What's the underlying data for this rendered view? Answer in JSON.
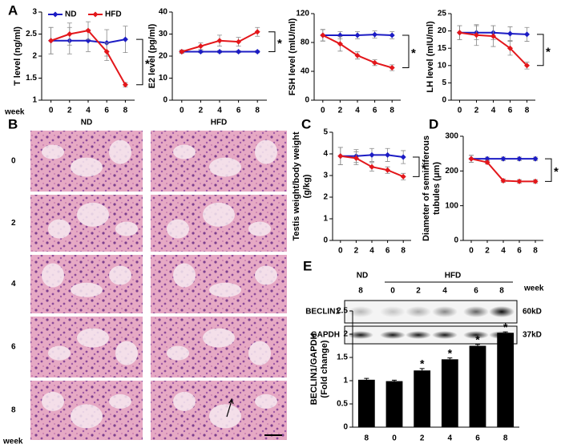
{
  "panel_labels": [
    "A",
    "B",
    "C",
    "D",
    "E"
  ],
  "histology": {
    "columns": [
      "ND",
      "HFD"
    ],
    "rows": [
      "0",
      "2",
      "4",
      "6",
      "8"
    ],
    "row_axis_label": "week"
  },
  "blot": {
    "groups": [
      "ND",
      "HFD"
    ],
    "lane_axis_label": "week",
    "lanes": [
      "8",
      "0",
      "2",
      "4",
      "6",
      "8"
    ],
    "rows": [
      {
        "name": "BECLIN1",
        "size": "60kD"
      },
      {
        "name": "GAPDH",
        "size": "37kD"
      }
    ]
  },
  "chart_data": [
    {
      "type": "line",
      "ylabel": "T level (ng/ml)",
      "xlabel": "week",
      "legend": true,
      "annotation": "*",
      "x": [
        0,
        2,
        4,
        6,
        8
      ],
      "xlim": [
        -1,
        9
      ],
      "xticks": [
        0,
        2,
        4,
        6,
        8
      ],
      "ylim": [
        1,
        3
      ],
      "yticks": [
        1,
        1.5,
        2,
        2.5,
        3
      ],
      "series": [
        {
          "name": "ND",
          "color": "#1c1cc4",
          "values": [
            2.35,
            2.35,
            2.35,
            2.3,
            2.38
          ],
          "errors": [
            0.3,
            0.3,
            0.25,
            0.3,
            0.3
          ]
        },
        {
          "name": "HFD",
          "color": "#e3171b",
          "values": [
            2.35,
            2.5,
            2.58,
            2.1,
            1.35
          ],
          "errors": [
            0.3,
            0.25,
            0.2,
            0.2,
            0.05
          ]
        }
      ]
    },
    {
      "type": "line",
      "ylabel": "E2 level (pg/ml)",
      "annotation": "*",
      "x": [
        0,
        2,
        4,
        6,
        8
      ],
      "xlim": [
        -1,
        9
      ],
      "xticks": [
        0,
        2,
        4,
        6,
        8
      ],
      "ylim": [
        0,
        40
      ],
      "yticks": [
        0,
        10,
        20,
        30,
        40
      ],
      "series": [
        {
          "name": "ND",
          "color": "#1c1cc4",
          "values": [
            22,
            22,
            22,
            22,
            22
          ],
          "errors": [
            0.5,
            0.5,
            0.5,
            0.5,
            0.5
          ]
        },
        {
          "name": "HFD",
          "color": "#e3171b",
          "values": [
            22,
            24.5,
            27,
            26.5,
            31
          ],
          "errors": [
            0.8,
            1.5,
            2.5,
            2,
            2
          ]
        }
      ]
    },
    {
      "type": "line",
      "ylabel": "FSH level (mIU/ml)",
      "annotation": "*",
      "x": [
        0,
        2,
        4,
        6,
        8
      ],
      "xlim": [
        -1,
        9
      ],
      "xticks": [
        0,
        2,
        4,
        6,
        8
      ],
      "ylim": [
        0,
        120
      ],
      "yticks": [
        0,
        40,
        80,
        120
      ],
      "series": [
        {
          "name": "ND",
          "color": "#1c1cc4",
          "values": [
            90,
            90,
            90,
            91,
            90
          ],
          "errors": [
            8,
            5,
            5,
            5,
            5
          ]
        },
        {
          "name": "HFD",
          "color": "#e3171b",
          "values": [
            90,
            78,
            62,
            52,
            45
          ],
          "errors": [
            8,
            10,
            5,
            4,
            4
          ]
        }
      ]
    },
    {
      "type": "line",
      "ylabel": "LH level (mIU/ml)",
      "annotation": "*",
      "x": [
        0,
        2,
        4,
        6,
        8
      ],
      "xlim": [
        -1,
        9
      ],
      "xticks": [
        0,
        2,
        4,
        6,
        8
      ],
      "ylim": [
        0,
        25
      ],
      "yticks": [
        0,
        5,
        10,
        15,
        20,
        25
      ],
      "series": [
        {
          "name": "ND",
          "color": "#1c1cc4",
          "values": [
            19.5,
            19.5,
            19.5,
            19.2,
            19
          ],
          "errors": [
            2,
            2,
            2,
            2,
            2
          ]
        },
        {
          "name": "HFD",
          "color": "#e3171b",
          "values": [
            19.5,
            18.8,
            18.5,
            15,
            10
          ],
          "errors": [
            2,
            3,
            3,
            2,
            1
          ]
        }
      ]
    },
    {
      "type": "line",
      "ylabel": [
        "Testis weight/body weight",
        "(g/kg)"
      ],
      "annotation": "*",
      "x": [
        0,
        2,
        4,
        6,
        8
      ],
      "xlim": [
        -1,
        9
      ],
      "xticks": [
        0,
        2,
        4,
        6,
        8
      ],
      "ylim": [
        0,
        5
      ],
      "yticks": [
        0,
        1,
        2,
        3,
        4,
        5
      ],
      "series": [
        {
          "name": "ND",
          "color": "#1c1cc4",
          "values": [
            3.9,
            3.9,
            3.95,
            3.95,
            3.85
          ],
          "errors": [
            0.4,
            0.3,
            0.3,
            0.3,
            0.3
          ]
        },
        {
          "name": "HFD",
          "color": "#e3171b",
          "values": [
            3.9,
            3.8,
            3.4,
            3.25,
            2.95
          ],
          "errors": [
            0.4,
            0.3,
            0.2,
            0.15,
            0.15
          ]
        }
      ]
    },
    {
      "type": "line",
      "ylabel": [
        "Diameter of seminiferous",
        "tubules (μm)"
      ],
      "annotation": "*",
      "x": [
        0,
        2,
        4,
        6,
        8
      ],
      "xlim": [
        -1,
        9
      ],
      "xticks": [
        0,
        2,
        4,
        6,
        8
      ],
      "ylim": [
        0,
        300
      ],
      "yticks": [
        0,
        100,
        200,
        300
      ],
      "series": [
        {
          "name": "ND",
          "color": "#1c1cc4",
          "values": [
            235,
            235,
            235,
            235,
            235
          ],
          "errors": [
            10,
            5,
            5,
            5,
            5
          ]
        },
        {
          "name": "HFD",
          "color": "#e3171b",
          "values": [
            235,
            225,
            172,
            170,
            170
          ],
          "errors": [
            10,
            5,
            5,
            5,
            5
          ]
        }
      ]
    },
    {
      "type": "bar",
      "ylabel": [
        "BECLIN1/GAPDH",
        "(Fold change)"
      ],
      "color": "#000000",
      "categories": [
        "8",
        "0",
        "2",
        "4",
        "6",
        "8"
      ],
      "values": [
        1.02,
        0.99,
        1.22,
        1.46,
        1.75,
        2.03
      ],
      "errors": [
        0.03,
        0.02,
        0.04,
        0.03,
        0.03,
        0.02
      ],
      "annotations": [
        null,
        null,
        "*",
        "*",
        "*",
        "*"
      ],
      "ylim": [
        0,
        2.5
      ],
      "yticks": [
        0,
        0.5,
        1,
        1.5,
        2,
        2.5
      ]
    }
  ]
}
